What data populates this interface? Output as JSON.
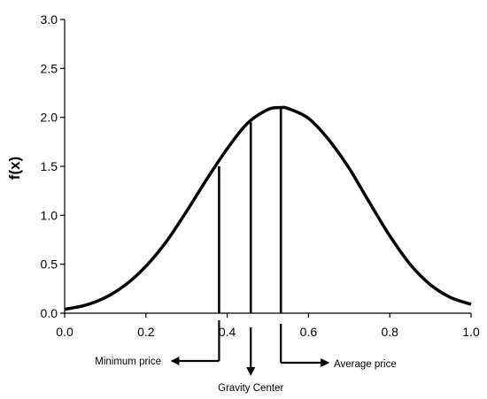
{
  "chart_data": {
    "type": "line",
    "title": "",
    "xlabel": "",
    "ylabel": "f(x)",
    "xlim": [
      0.0,
      1.0
    ],
    "ylim": [
      0.0,
      3.0
    ],
    "grid": false,
    "legend": "none",
    "x_ticks": [
      "0.0",
      "0.2",
      "0.4",
      "0.6",
      "0.8",
      "1.0"
    ],
    "y_ticks": [
      "0.0",
      "0.5",
      "1.0",
      "1.5",
      "2.0",
      "2.5",
      "3.0"
    ],
    "series": [
      {
        "x": [
          0.0,
          0.05,
          0.1,
          0.15,
          0.2,
          0.25,
          0.3,
          0.35,
          0.4,
          0.45,
          0.5,
          0.53,
          0.55,
          0.6,
          0.65,
          0.7,
          0.75,
          0.8,
          0.85,
          0.9,
          0.95,
          1.0
        ],
        "y": [
          0.04,
          0.08,
          0.16,
          0.29,
          0.48,
          0.73,
          1.04,
          1.37,
          1.68,
          1.94,
          2.08,
          2.1,
          2.09,
          1.99,
          1.77,
          1.48,
          1.13,
          0.79,
          0.5,
          0.29,
          0.16,
          0.09
        ]
      }
    ],
    "markers": [
      {
        "label": "Minimum price",
        "x": 0.38,
        "y": 1.5,
        "direction": "left"
      },
      {
        "label": "Gravity Center",
        "x": 0.458,
        "y": 1.95,
        "direction": "down"
      },
      {
        "label": "Average price",
        "x": 0.532,
        "y": 2.1,
        "direction": "right"
      }
    ],
    "colors": {
      "line": "#000000",
      "axes": "#000000",
      "background": "#ffffff"
    }
  }
}
